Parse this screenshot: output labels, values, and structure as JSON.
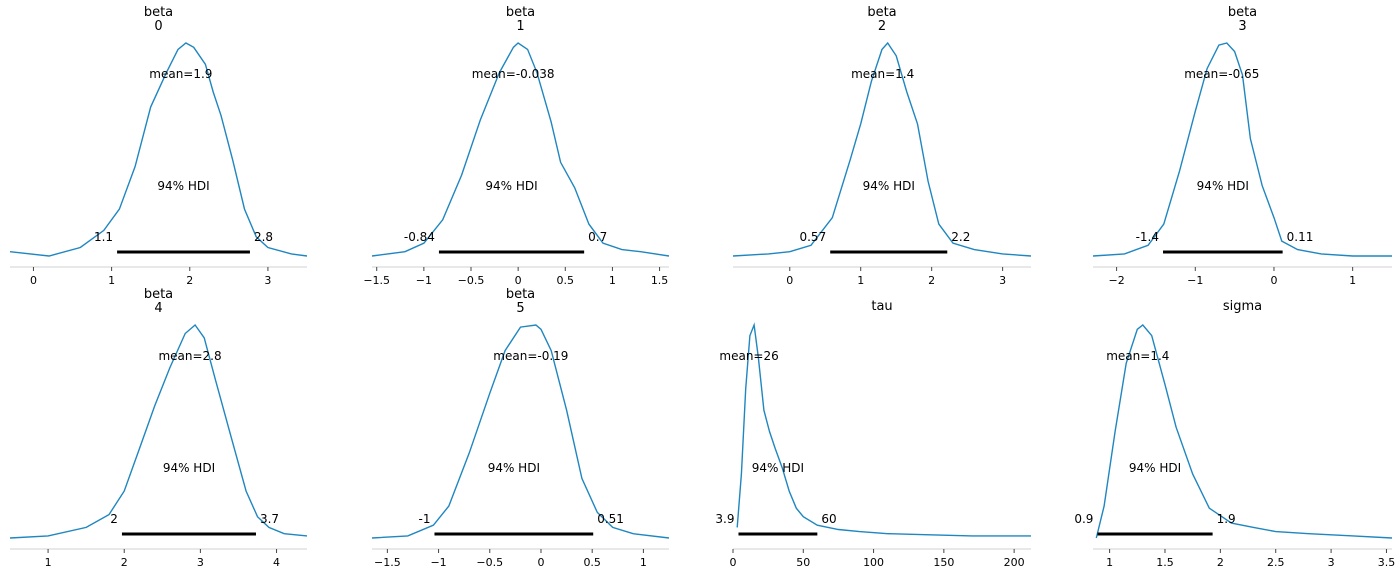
{
  "chart_data": [
    {
      "type": "area",
      "title": "beta\n0",
      "xticks": [
        0,
        1,
        2,
        3
      ],
      "xlim": [
        -0.3,
        3.5
      ],
      "mean_label": "mean=1.9",
      "hdi_label": "94% HDI",
      "hdi": [
        1.07,
        2.77
      ],
      "hdi_low_label": "1.1",
      "hdi_high_label": "2.8",
      "curve": [
        [
          -0.3,
          0.02
        ],
        [
          0.2,
          0.0
        ],
        [
          0.6,
          0.04
        ],
        [
          0.9,
          0.12
        ],
        [
          1.1,
          0.22
        ],
        [
          1.3,
          0.42
        ],
        [
          1.5,
          0.7
        ],
        [
          1.7,
          0.86
        ],
        [
          1.85,
          0.97
        ],
        [
          1.95,
          1.0
        ],
        [
          2.05,
          0.98
        ],
        [
          2.2,
          0.9
        ],
        [
          2.3,
          0.77
        ],
        [
          2.4,
          0.66
        ],
        [
          2.55,
          0.45
        ],
        [
          2.7,
          0.22
        ],
        [
          2.85,
          0.09
        ],
        [
          3.0,
          0.04
        ],
        [
          3.3,
          0.01
        ],
        [
          3.5,
          0.0
        ]
      ]
    },
    {
      "type": "area",
      "title": "beta\n1",
      "xticks": [
        -1.5,
        -1.0,
        -0.5,
        0.0,
        0.5,
        1.0,
        1.5
      ],
      "xlim": [
        -1.55,
        1.6
      ],
      "mean_label": "mean=-0.038",
      "hdi_label": "94% HDI",
      "hdi": [
        -0.84,
        0.7
      ],
      "hdi_low_label": "-0.84",
      "hdi_high_label": "0.7",
      "curve": [
        [
          -1.55,
          0.0
        ],
        [
          -1.2,
          0.02
        ],
        [
          -1.0,
          0.06
        ],
        [
          -0.8,
          0.17
        ],
        [
          -0.6,
          0.38
        ],
        [
          -0.4,
          0.64
        ],
        [
          -0.2,
          0.86
        ],
        [
          -0.05,
          0.98
        ],
        [
          0.0,
          1.0
        ],
        [
          0.1,
          0.97
        ],
        [
          0.2,
          0.86
        ],
        [
          0.35,
          0.63
        ],
        [
          0.45,
          0.44
        ],
        [
          0.6,
          0.32
        ],
        [
          0.75,
          0.15
        ],
        [
          0.9,
          0.06
        ],
        [
          1.1,
          0.03
        ],
        [
          1.3,
          0.02
        ],
        [
          1.6,
          0.0
        ]
      ]
    },
    {
      "type": "area",
      "title": "beta\n2",
      "xticks": [
        0,
        1,
        2,
        3
      ],
      "xlim": [
        -0.8,
        3.4
      ],
      "mean_label": "mean=1.4",
      "hdi_label": "94% HDI",
      "hdi": [
        0.57,
        2.22
      ],
      "hdi_low_label": "0.57",
      "hdi_high_label": "2.2",
      "curve": [
        [
          -0.8,
          0.0
        ],
        [
          -0.3,
          0.01
        ],
        [
          0.0,
          0.02
        ],
        [
          0.3,
          0.05
        ],
        [
          0.6,
          0.18
        ],
        [
          0.85,
          0.45
        ],
        [
          1.0,
          0.62
        ],
        [
          1.15,
          0.82
        ],
        [
          1.3,
          0.97
        ],
        [
          1.38,
          1.0
        ],
        [
          1.5,
          0.94
        ],
        [
          1.65,
          0.77
        ],
        [
          1.8,
          0.62
        ],
        [
          1.95,
          0.35
        ],
        [
          2.1,
          0.15
        ],
        [
          2.3,
          0.06
        ],
        [
          2.6,
          0.03
        ],
        [
          3.0,
          0.01
        ],
        [
          3.4,
          0.0
        ]
      ]
    },
    {
      "type": "area",
      "title": "beta\n3",
      "xticks": [
        -2,
        -1,
        0,
        1
      ],
      "xlim": [
        -2.3,
        1.5
      ],
      "mean_label": "mean=-0.65",
      "hdi_label": "94% HDI",
      "hdi": [
        -1.41,
        0.11
      ],
      "hdi_low_label": "-1.4",
      "hdi_high_label": "0.11",
      "curve": [
        [
          -2.3,
          0.0
        ],
        [
          -1.9,
          0.01
        ],
        [
          -1.6,
          0.05
        ],
        [
          -1.4,
          0.15
        ],
        [
          -1.2,
          0.4
        ],
        [
          -1.0,
          0.68
        ],
        [
          -0.85,
          0.88
        ],
        [
          -0.7,
          0.99
        ],
        [
          -0.6,
          1.0
        ],
        [
          -0.5,
          0.96
        ],
        [
          -0.4,
          0.85
        ],
        [
          -0.3,
          0.55
        ],
        [
          -0.15,
          0.33
        ],
        [
          0.0,
          0.18
        ],
        [
          0.1,
          0.07
        ],
        [
          0.3,
          0.03
        ],
        [
          0.6,
          0.01
        ],
        [
          1.0,
          0.0
        ],
        [
          1.5,
          0.0
        ]
      ]
    },
    {
      "type": "area",
      "title": "beta\n4",
      "xticks": [
        1,
        2,
        3,
        4
      ],
      "xlim": [
        0.5,
        4.4
      ],
      "mean_label": "mean=2.8",
      "hdi_label": "94% HDI",
      "hdi": [
        1.97,
        3.73
      ],
      "hdi_low_label": "2",
      "hdi_high_label": "3.7",
      "curve": [
        [
          0.5,
          0.0
        ],
        [
          1.0,
          0.01
        ],
        [
          1.5,
          0.05
        ],
        [
          1.8,
          0.11
        ],
        [
          2.0,
          0.22
        ],
        [
          2.2,
          0.42
        ],
        [
          2.4,
          0.62
        ],
        [
          2.6,
          0.8
        ],
        [
          2.8,
          0.96
        ],
        [
          2.93,
          1.0
        ],
        [
          3.05,
          0.94
        ],
        [
          3.2,
          0.74
        ],
        [
          3.4,
          0.48
        ],
        [
          3.6,
          0.22
        ],
        [
          3.75,
          0.1
        ],
        [
          3.9,
          0.05
        ],
        [
          4.1,
          0.02
        ],
        [
          4.4,
          0.01
        ]
      ]
    },
    {
      "type": "area",
      "title": "beta\n5",
      "xticks": [
        -1.5,
        -1.0,
        -0.5,
        0.0,
        0.5,
        1.0
      ],
      "xlim": [
        -1.65,
        1.25
      ],
      "mean_label": "mean=-0.19",
      "hdi_label": "94% HDI",
      "hdi": [
        -1.04,
        0.51
      ],
      "hdi_low_label": "-1",
      "hdi_high_label": "0.51",
      "curve": [
        [
          -1.65,
          0.0
        ],
        [
          -1.3,
          0.01
        ],
        [
          -1.05,
          0.06
        ],
        [
          -0.9,
          0.15
        ],
        [
          -0.7,
          0.4
        ],
        [
          -0.5,
          0.68
        ],
        [
          -0.35,
          0.88
        ],
        [
          -0.2,
          0.99
        ],
        [
          -0.05,
          1.0
        ],
        [
          0.0,
          0.98
        ],
        [
          0.1,
          0.88
        ],
        [
          0.25,
          0.6
        ],
        [
          0.4,
          0.28
        ],
        [
          0.55,
          0.12
        ],
        [
          0.7,
          0.05
        ],
        [
          0.9,
          0.02
        ],
        [
          1.25,
          0.0
        ]
      ]
    },
    {
      "type": "area",
      "title": "tau",
      "xticks": [
        0,
        50,
        100,
        150,
        200
      ],
      "xlim": [
        0,
        212
      ],
      "mean_label": "mean=26",
      "hdi_label": "94% HDI",
      "hdi": [
        3.9,
        60
      ],
      "hdi_low_label": "3.9",
      "hdi_high_label": "60",
      "curve": [
        [
          3,
          0.05
        ],
        [
          6,
          0.3
        ],
        [
          9,
          0.7
        ],
        [
          12,
          0.95
        ],
        [
          15,
          1.0
        ],
        [
          18,
          0.85
        ],
        [
          22,
          0.6
        ],
        [
          26,
          0.5
        ],
        [
          30,
          0.42
        ],
        [
          35,
          0.33
        ],
        [
          40,
          0.22
        ],
        [
          45,
          0.14
        ],
        [
          50,
          0.1
        ],
        [
          60,
          0.06
        ],
        [
          75,
          0.04
        ],
        [
          90,
          0.03
        ],
        [
          110,
          0.02
        ],
        [
          140,
          0.015
        ],
        [
          170,
          0.01
        ],
        [
          212,
          0.01
        ]
      ]
    },
    {
      "type": "area",
      "title": "sigma",
      "xticks": [
        1.0,
        1.5,
        2.0,
        2.5,
        3.0,
        3.5
      ],
      "xlim": [
        0.85,
        3.55
      ],
      "mean_label": "mean=1.4",
      "hdi_label": "94% HDI",
      "hdi": [
        0.89,
        1.93
      ],
      "hdi_low_label": "0.9",
      "hdi_high_label": "1.9",
      "curve": [
        [
          0.88,
          0.0
        ],
        [
          0.95,
          0.15
        ],
        [
          1.05,
          0.5
        ],
        [
          1.15,
          0.82
        ],
        [
          1.25,
          0.98
        ],
        [
          1.3,
          1.0
        ],
        [
          1.38,
          0.95
        ],
        [
          1.5,
          0.72
        ],
        [
          1.6,
          0.52
        ],
        [
          1.75,
          0.3
        ],
        [
          1.9,
          0.14
        ],
        [
          2.1,
          0.07
        ],
        [
          2.3,
          0.05
        ],
        [
          2.5,
          0.03
        ],
        [
          2.8,
          0.02
        ],
        [
          3.2,
          0.01
        ],
        [
          3.55,
          0.0
        ]
      ]
    }
  ]
}
